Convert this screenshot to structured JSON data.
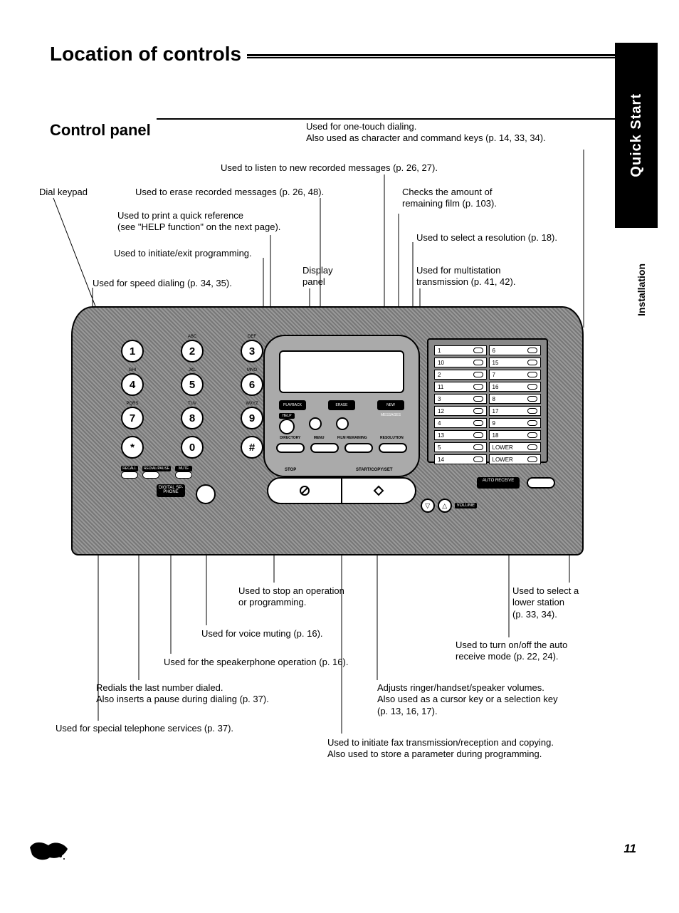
{
  "title": "Location of controls",
  "subtitle": "Control panel",
  "tabs": {
    "black": "Quick Start",
    "white": "Installation"
  },
  "pageNumber": "11",
  "callouts": {
    "oneTouch": "Used for one-touch dialing.\nAlso used as character and command keys (p. 14, 33, 34).",
    "listen": "Used to listen to new recorded messages (p. 26, 27).",
    "dialKeypad": "Dial keypad",
    "erase": "Used to erase recorded messages (p. 26, 48).",
    "filmCheck": "Checks the amount of\nremaining film (p. 103).",
    "help": "Used to print a quick reference\n(see \"HELP function\" on the next page).",
    "resolution": "Used to select a resolution (p. 18).",
    "program": "Used to initiate/exit programming.",
    "displayPanel": "Display\npanel",
    "multistation": "Used for multistation\ntransmission (p. 41, 42).",
    "speedDial": "Used for speed dialing (p. 34, 35).",
    "stop": "Used to stop an operation\nor programming.",
    "lowerStation": "Used to select a\nlower station\n(p. 33, 34).",
    "mute": "Used for voice muting (p. 16).",
    "autoReceive": "Used to turn on/off the auto\nreceive mode (p. 22, 24).",
    "speakerphone": "Used for the speakerphone operation (p. 16).",
    "redial": "Redials the last number dialed.\nAlso inserts a pause during dialing (p. 37).",
    "volume": "Adjusts ringer/handset/speaker volumes.\nAlso used as a cursor key or a selection key\n(p. 13, 16, 17).",
    "recall": "Used for special telephone services (p. 37).",
    "startCopy": "Used to initiate fax transmission/reception and copying.\nAlso used to store a parameter during programming."
  },
  "keypad": {
    "rows": [
      [
        {
          "k": "1",
          "l": ""
        },
        {
          "k": "2",
          "l": "ABC"
        },
        {
          "k": "3",
          "l": "DEF"
        }
      ],
      [
        {
          "k": "4",
          "l": "GHI"
        },
        {
          "k": "5",
          "l": "JKL"
        },
        {
          "k": "6",
          "l": "MNO"
        }
      ],
      [
        {
          "k": "7",
          "l": "PQRS"
        },
        {
          "k": "8",
          "l": "TUV"
        },
        {
          "k": "9",
          "l": "WXYZ"
        }
      ],
      [
        {
          "k": "*",
          "l": ""
        },
        {
          "k": "0",
          "l": ""
        },
        {
          "k": "#",
          "l": ""
        }
      ]
    ]
  },
  "panelLabels": {
    "digitalSpPhone": "DIGITAL SP-PHONE",
    "recall": "RECALL",
    "redialPause": "REDIAL/PAUSE",
    "muteBtn": "MUTE",
    "help": "HELP",
    "playback": "PLAYBACK",
    "erase": "ERASE",
    "newMsg": "NEW MESSAGES",
    "directory": "DIRECTORY",
    "menu": "MENU",
    "filmRemain": "FILM REMAINING",
    "resolution": "RESOLUTION",
    "stop": "STOP",
    "startCopySet": "START/COPY/SET",
    "autoReceive": "AUTO RECEIVE",
    "volume": "VOLUME",
    "lower": "LOWER"
  },
  "oneTouchKeys": [
    [
      "1",
      "6"
    ],
    [
      "10",
      "15"
    ],
    [
      "2",
      "7"
    ],
    [
      "11",
      "16"
    ],
    [
      "3",
      "8"
    ],
    [
      "12",
      "17"
    ],
    [
      "4",
      "9"
    ],
    [
      "13",
      "18"
    ],
    [
      "5",
      ""
    ],
    [
      "14",
      ""
    ]
  ],
  "style": {
    "page_bg": "#ffffff",
    "text": "#000000",
    "panel_fill": "#888888",
    "line_stroke": "#000000",
    "title_fontsize": 28,
    "subtitle_fontsize": 22,
    "callout_fontsize": 13
  }
}
